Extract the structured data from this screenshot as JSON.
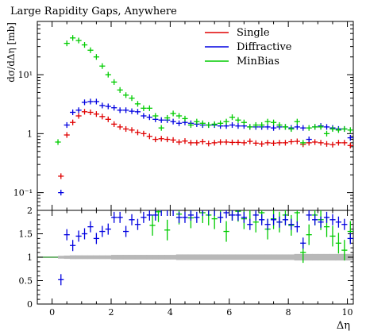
{
  "chart_data": [
    {
      "type": "scatter",
      "title": "Large Rapidity Gaps, Anywhere",
      "ylabel": "dσ/dΔη [mb]",
      "yscale": "log",
      "ylim": [
        0.05,
        80
      ],
      "xlim": [
        -0.5,
        10.2
      ],
      "ytick_labels": [
        "10⁻¹",
        "1",
        "10¹"
      ],
      "legend": "top-right",
      "series": [
        {
          "name": "Single",
          "color": "#e00000",
          "x": [
            0.3,
            0.5,
            0.7,
            0.9,
            1.1,
            1.3,
            1.5,
            1.7,
            1.9,
            2.1,
            2.3,
            2.5,
            2.7,
            2.9,
            3.1,
            3.3,
            3.5,
            3.7,
            3.9,
            4.1,
            4.3,
            4.5,
            4.7,
            4.9,
            5.1,
            5.3,
            5.5,
            5.7,
            5.9,
            6.1,
            6.3,
            6.5,
            6.7,
            6.9,
            7.1,
            7.3,
            7.5,
            7.7,
            7.9,
            8.1,
            8.3,
            8.5,
            8.7,
            8.9,
            9.1,
            9.3,
            9.5,
            9.7,
            9.9,
            10.1
          ],
          "y": [
            0.19,
            0.95,
            1.55,
            2.0,
            2.35,
            2.3,
            2.15,
            1.95,
            1.75,
            1.45,
            1.3,
            1.2,
            1.15,
            1.05,
            1.0,
            0.9,
            0.8,
            0.82,
            0.8,
            0.78,
            0.72,
            0.75,
            0.7,
            0.7,
            0.73,
            0.68,
            0.7,
            0.72,
            0.72,
            0.71,
            0.71,
            0.7,
            0.74,
            0.69,
            0.67,
            0.7,
            0.69,
            0.7,
            0.7,
            0.73,
            0.74,
            0.66,
            0.7,
            0.72,
            0.7,
            0.67,
            0.65,
            0.7,
            0.7,
            0.63
          ]
        },
        {
          "name": "Diffractive",
          "color": "#0000e0",
          "x": [
            0.3,
            0.5,
            0.7,
            0.9,
            1.1,
            1.3,
            1.5,
            1.7,
            1.9,
            2.1,
            2.3,
            2.5,
            2.7,
            2.9,
            3.1,
            3.3,
            3.5,
            3.7,
            3.9,
            4.1,
            4.3,
            4.5,
            4.7,
            4.9,
            5.1,
            5.3,
            5.5,
            5.7,
            5.9,
            6.1,
            6.3,
            6.5,
            6.7,
            6.9,
            7.1,
            7.3,
            7.5,
            7.7,
            7.9,
            8.1,
            8.3,
            8.5,
            8.7,
            8.9,
            9.1,
            9.3,
            9.5,
            9.7,
            9.9,
            10.1
          ],
          "y": [
            0.1,
            1.4,
            2.3,
            2.5,
            3.4,
            3.5,
            3.5,
            3.0,
            2.9,
            2.75,
            2.5,
            2.5,
            2.4,
            2.35,
            2.0,
            1.9,
            1.75,
            1.7,
            1.7,
            1.6,
            1.5,
            1.55,
            1.5,
            1.45,
            1.4,
            1.4,
            1.4,
            1.35,
            1.35,
            1.4,
            1.35,
            1.35,
            1.3,
            1.3,
            1.3,
            1.3,
            1.25,
            1.3,
            1.3,
            1.25,
            1.3,
            1.25,
            0.8,
            1.3,
            1.35,
            1.3,
            1.25,
            1.2,
            1.2,
            0.85
          ]
        },
        {
          "name": "MinBias",
          "color": "#00cc00",
          "x": [
            0.2,
            0.5,
            0.7,
            0.9,
            1.1,
            1.3,
            1.5,
            1.7,
            1.9,
            2.1,
            2.3,
            2.5,
            2.7,
            2.9,
            3.1,
            3.3,
            3.5,
            3.7,
            3.9,
            4.1,
            4.3,
            4.5,
            4.7,
            4.9,
            5.1,
            5.3,
            5.5,
            5.7,
            5.9,
            6.1,
            6.3,
            6.5,
            6.7,
            6.9,
            7.1,
            7.3,
            7.5,
            7.7,
            7.9,
            8.1,
            8.3,
            8.5,
            8.7,
            8.9,
            9.1,
            9.3,
            9.5,
            9.7,
            9.9,
            10.1
          ],
          "y": [
            0.72,
            34,
            42,
            38,
            32,
            26,
            20,
            14,
            10,
            7.5,
            5.5,
            4.5,
            4.0,
            3.2,
            2.7,
            2.7,
            2.0,
            1.25,
            1.85,
            2.2,
            2.0,
            1.8,
            1.4,
            1.6,
            1.5,
            1.4,
            1.45,
            1.5,
            1.6,
            1.9,
            1.7,
            1.55,
            1.3,
            1.4,
            1.4,
            1.6,
            1.55,
            1.4,
            1.3,
            1.2,
            1.6,
            0.7,
            1.25,
            1.3,
            1.3,
            1.0,
            1.2,
            1.15,
            1.2,
            1.15
          ]
        }
      ]
    },
    {
      "type": "scatter",
      "xlabel": "Δη",
      "xlim": [
        -0.5,
        10.2
      ],
      "ylim": [
        0,
        2
      ],
      "xticks": [
        0,
        2,
        4,
        6,
        8,
        10
      ],
      "yticks": [
        0,
        0.5,
        1,
        1.5,
        2
      ],
      "reference_line": 1,
      "reference_band_halfwidth": [
        0.03,
        0.035,
        0.04,
        0.04,
        0.04,
        0.04,
        0.04,
        0.04,
        0.04,
        0.05,
        0.05,
        0.05,
        0.05,
        0.05,
        0.05,
        0.05,
        0.05,
        0.05,
        0.05,
        0.05,
        0.06,
        0.06,
        0.06,
        0.06,
        0.06,
        0.06,
        0.06,
        0.06,
        0.06,
        0.06,
        0.06,
        0.06,
        0.06,
        0.06,
        0.06,
        0.06,
        0.06,
        0.06,
        0.06,
        0.06,
        0.07,
        0.07,
        0.07,
        0.07,
        0.07,
        0.07,
        0.07,
        0.07,
        0.07,
        0.07
      ],
      "series": [
        {
          "name": "Diffractive",
          "color": "#0000e0",
          "x": [
            0.3,
            0.5,
            0.7,
            0.9,
            1.1,
            1.3,
            1.5,
            1.7,
            1.9,
            2.1,
            2.3,
            2.5,
            2.7,
            2.9,
            3.1,
            3.3,
            3.5,
            3.7,
            3.9,
            4.1,
            4.3,
            4.5,
            4.7,
            4.9,
            5.1,
            5.3,
            5.5,
            5.7,
            5.9,
            6.1,
            6.3,
            6.5,
            6.7,
            6.9,
            7.1,
            7.3,
            7.5,
            7.7,
            7.9,
            8.1,
            8.3,
            8.5,
            8.7,
            8.9,
            9.1,
            9.3,
            9.5,
            9.7,
            9.9,
            10.1
          ],
          "y": [
            0.52,
            1.48,
            1.25,
            1.45,
            1.5,
            1.65,
            1.4,
            1.55,
            1.6,
            1.85,
            1.85,
            1.55,
            1.8,
            1.7,
            1.85,
            1.9,
            1.9,
            2.0,
            2.0,
            2.0,
            1.85,
            1.85,
            1.9,
            1.85,
            2.0,
            2.0,
            2.0,
            1.85,
            1.95,
            1.9,
            1.9,
            1.85,
            1.7,
            1.9,
            1.8,
            1.7,
            1.8,
            1.75,
            1.8,
            1.7,
            1.65,
            1.3,
            1.9,
            1.8,
            1.75,
            1.85,
            1.8,
            1.75,
            1.7,
            1.4
          ]
        },
        {
          "name": "MinBias",
          "color": "#00cc00",
          "x": [
            3.4,
            3.6,
            3.9,
            4.3,
            4.7,
            5.1,
            5.3,
            5.5,
            5.7,
            5.9,
            6.1,
            6.3,
            6.5,
            6.7,
            6.9,
            7.1,
            7.3,
            7.5,
            7.7,
            7.9,
            8.1,
            8.3,
            8.5,
            8.7,
            8.9,
            9.1,
            9.3,
            9.5,
            9.7,
            9.9,
            10.1
          ],
          "y": [
            1.68,
            1.97,
            1.58,
            1.92,
            1.84,
            1.95,
            1.9,
            1.82,
            2.0,
            1.55,
            2.0,
            1.98,
            1.82,
            2.0,
            1.75,
            1.95,
            1.6,
            1.82,
            1.75,
            1.9,
            1.68,
            1.95,
            1.1,
            1.48,
            1.9,
            1.8,
            1.65,
            1.45,
            1.3,
            1.15,
            1.55
          ]
        }
      ]
    }
  ]
}
